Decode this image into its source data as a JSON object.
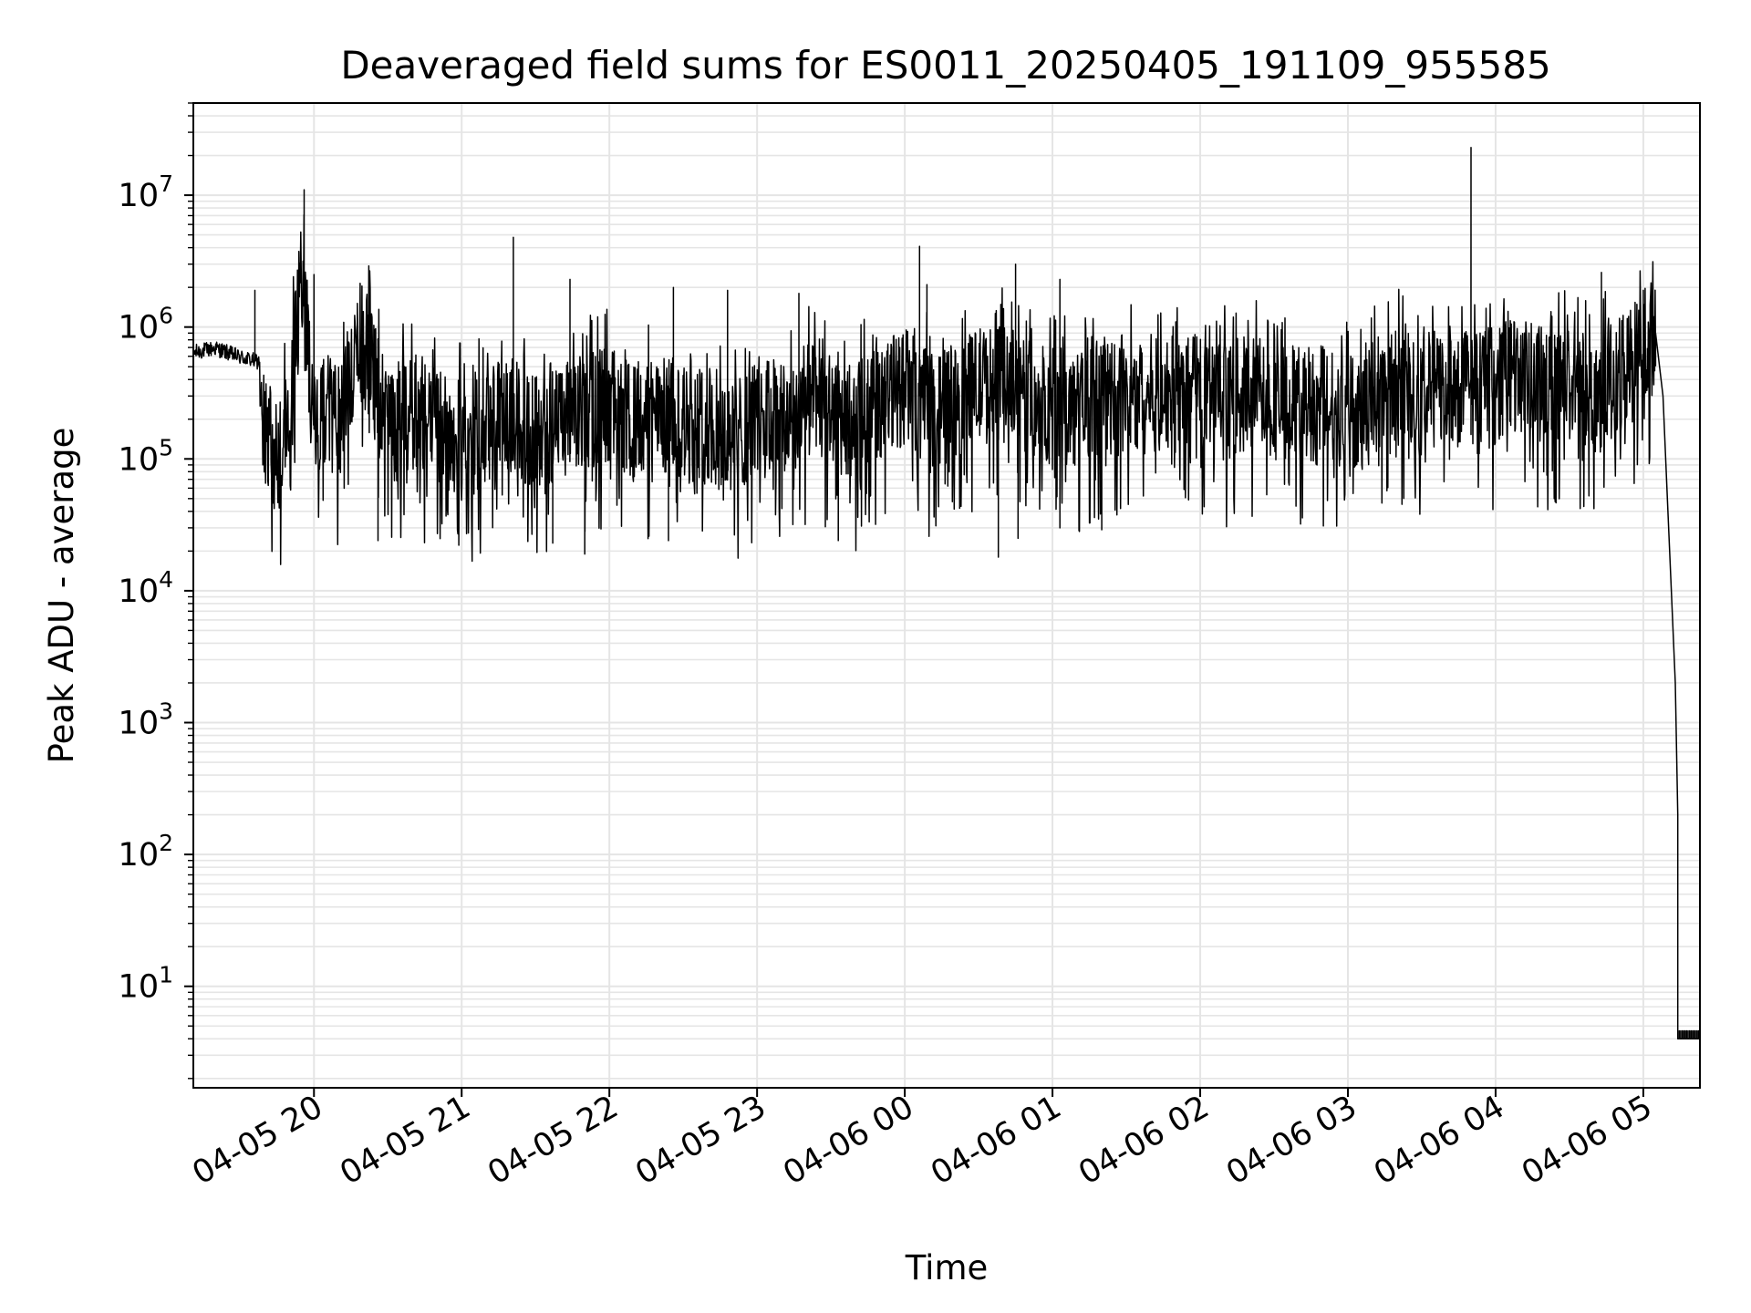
{
  "chart_data": {
    "type": "line",
    "title": "Deaveraged field sums for ES0011_20250405_191109_955585",
    "xlabel": "Time",
    "ylabel": "Peak ADU - average",
    "yscale": "log",
    "ylim": [
      1.7,
      50000000
    ],
    "xlim": [
      "2025-04-05 19:11",
      "2025-04-06 05:23"
    ],
    "grid": true,
    "line_color": "#000000",
    "grid_color": "#e5e5e5",
    "x_ticks": [
      {
        "value": "2025-04-05 20:00",
        "label": "04-05 20"
      },
      {
        "value": "2025-04-05 21:00",
        "label": "04-05 21"
      },
      {
        "value": "2025-04-05 22:00",
        "label": "04-05 22"
      },
      {
        "value": "2025-04-05 23:00",
        "label": "04-05 23"
      },
      {
        "value": "2025-04-06 00:00",
        "label": "04-06 00"
      },
      {
        "value": "2025-04-06 01:00",
        "label": "04-06 01"
      },
      {
        "value": "2025-04-06 02:00",
        "label": "04-06 02"
      },
      {
        "value": "2025-04-06 03:00",
        "label": "04-06 03"
      },
      {
        "value": "2025-04-06 04:00",
        "label": "04-06 04"
      },
      {
        "value": "2025-04-06 05:00",
        "label": "04-06 05"
      }
    ],
    "y_ticks": [
      {
        "value": 10,
        "base": "10",
        "exp": "1"
      },
      {
        "value": 100,
        "base": "10",
        "exp": "2"
      },
      {
        "value": 1000,
        "base": "10",
        "exp": "3"
      },
      {
        "value": 10000,
        "base": "10",
        "exp": "4"
      },
      {
        "value": 100000,
        "base": "10",
        "exp": "5"
      },
      {
        "value": 1000000,
        "base": "10",
        "exp": "6"
      },
      {
        "value": 10000000,
        "base": "10",
        "exp": "7"
      }
    ],
    "series": [
      {
        "x": [
          "2025-04-05 19:11",
          "2025-04-05 19:20",
          "2025-04-05 19:30",
          "2025-04-05 19:38",
          "2025-04-05 19:40",
          "2025-04-05 19:45",
          "2025-04-05 19:50",
          "2025-04-05 19:55",
          "2025-04-05 20:00",
          "2025-04-05 20:05",
          "2025-04-05 20:10",
          "2025-04-05 20:20",
          "2025-04-05 20:30",
          "2025-04-05 20:40",
          "2025-04-05 20:50",
          "2025-04-05 21:00",
          "2025-04-05 21:10",
          "2025-04-05 21:20",
          "2025-04-05 21:30",
          "2025-04-05 21:40",
          "2025-04-05 21:50",
          "2025-04-05 22:00",
          "2025-04-05 22:10",
          "2025-04-05 22:20",
          "2025-04-05 22:30",
          "2025-04-05 22:40",
          "2025-04-05 22:50",
          "2025-04-05 23:00",
          "2025-04-05 23:10",
          "2025-04-05 23:20",
          "2025-04-05 23:30",
          "2025-04-05 23:40",
          "2025-04-05 23:50",
          "2025-04-06 00:00",
          "2025-04-06 00:10",
          "2025-04-06 00:20",
          "2025-04-06 00:30",
          "2025-04-06 00:40",
          "2025-04-06 00:50",
          "2025-04-06 01:00",
          "2025-04-06 01:10",
          "2025-04-06 01:20",
          "2025-04-06 01:30",
          "2025-04-06 01:40",
          "2025-04-06 01:50",
          "2025-04-06 02:00",
          "2025-04-06 02:10",
          "2025-04-06 02:20",
          "2025-04-06 02:30",
          "2025-04-06 02:40",
          "2025-04-06 02:50",
          "2025-04-06 03:00",
          "2025-04-06 03:10",
          "2025-04-06 03:20",
          "2025-04-06 03:30",
          "2025-04-06 03:40",
          "2025-04-06 03:50",
          "2025-04-06 04:00",
          "2025-04-06 04:10",
          "2025-04-06 04:20",
          "2025-04-06 04:30",
          "2025-04-06 04:40",
          "2025-04-06 04:50",
          "2025-04-06 05:00",
          "2025-04-06 05:05",
          "2025-04-06 05:08",
          "2025-04-06 05:10",
          "2025-04-06 05:13",
          "2025-04-06 05:14",
          "2025-04-06 05:15",
          "2025-04-06 05:23"
        ],
        "y": [
          650000,
          700000,
          600000,
          550000,
          150000,
          120000,
          200000,
          3000000,
          180000,
          250000,
          200000,
          900000,
          180000,
          250000,
          200000,
          150000,
          180000,
          250000,
          150000,
          200000,
          250000,
          300000,
          200000,
          250000,
          200000,
          200000,
          150000,
          250000,
          200000,
          300000,
          250000,
          200000,
          300000,
          400000,
          250000,
          300000,
          400000,
          400000,
          300000,
          300000,
          250000,
          350000,
          300000,
          350000,
          350000,
          350000,
          300000,
          350000,
          300000,
          300000,
          300000,
          250000,
          300000,
          400000,
          350000,
          400000,
          400000,
          400000,
          450000,
          400000,
          400000,
          350000,
          450000,
          800000,
          900000,
          300000,
          40000,
          2000,
          200,
          4,
          4
        ],
        "spikes": [
          {
            "x": "2025-04-05 19:36",
            "y": 1900000
          },
          {
            "x": "2025-04-05 19:54",
            "y": 2900000
          },
          {
            "x": "2025-04-05 19:56",
            "y": 11000000
          },
          {
            "x": "2025-04-05 20:00",
            "y": 2500000
          },
          {
            "x": "2025-04-05 21:21",
            "y": 4800000
          },
          {
            "x": "2025-04-05 21:44",
            "y": 2300000
          },
          {
            "x": "2025-04-05 22:26",
            "y": 2000000
          },
          {
            "x": "2025-04-05 22:48",
            "y": 1900000
          },
          {
            "x": "2025-04-05 23:17",
            "y": 1800000
          },
          {
            "x": "2025-04-06 00:06",
            "y": 4100000
          },
          {
            "x": "2025-04-06 00:09",
            "y": 2100000
          },
          {
            "x": "2025-04-06 00:45",
            "y": 3000000
          },
          {
            "x": "2025-04-06 01:03",
            "y": 2300000
          },
          {
            "x": "2025-04-06 03:50",
            "y": 23000000
          },
          {
            "x": "2025-04-06 04:43",
            "y": 2600000
          },
          {
            "x": "2025-04-06 05:00",
            "y": 1900000
          }
        ],
        "dips": [
          {
            "x": "2025-04-05 20:26",
            "y": 24000
          },
          {
            "x": "2025-04-05 21:37",
            "y": 23000
          },
          {
            "x": "2025-04-05 21:50",
            "y": 19000
          },
          {
            "x": "2025-04-05 22:24",
            "y": 24000
          },
          {
            "x": "2025-04-05 23:33",
            "y": 24000
          },
          {
            "x": "2025-04-06 00:38",
            "y": 18000
          },
          {
            "x": "2025-04-06 00:46",
            "y": 25000
          },
          {
            "x": "2025-04-06 01:03",
            "y": 30000
          },
          {
            "x": "2025-04-06 01:20",
            "y": 29000
          }
        ]
      }
    ]
  }
}
